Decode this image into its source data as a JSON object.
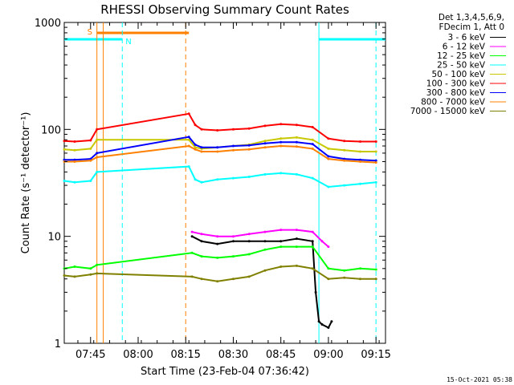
{
  "chart_data": {
    "type": "line",
    "title": "RHESSI Observing Summary Count Rates",
    "xlabel": "Start Time (23-Feb-04 07:36:42)",
    "ylabel": "Count Rate (s⁻¹ detector⁻¹)",
    "yscale": "log",
    "ylim": [
      1,
      1000
    ],
    "y_ticks": [
      "1",
      "10",
      "100",
      "1000"
    ],
    "x_ticks": [
      "07:45",
      "08:00",
      "08:15",
      "08:30",
      "08:45",
      "09:00",
      "09:15"
    ],
    "xlim": [
      "07:36:42",
      "09:18:00"
    ],
    "legend_header": [
      "Det 1,3,4,5,6,9,",
      "FDecim 1, Att 0"
    ],
    "legend_position": "right",
    "footer_date": "15-Oct-2021 05:38",
    "flags": [
      {
        "label": "S",
        "color": "#ff8000",
        "start": "07:47",
        "end": "08:16"
      },
      {
        "label": "N",
        "color": "#00ffff",
        "start": "07:36:42",
        "end": "07:55"
      },
      {
        "label": "",
        "color": "#00ffff",
        "start": "08:57",
        "end": "09:18:00"
      }
    ],
    "time_markers": [
      {
        "time": "07:47",
        "color": "#ff8000",
        "style": "solid"
      },
      {
        "time": "07:49",
        "color": "#ff8000",
        "style": "solid"
      },
      {
        "time": "07:55",
        "color": "#00ffff",
        "style": "dashed"
      },
      {
        "time": "08:15",
        "color": "#ff8000",
        "style": "dashed"
      },
      {
        "time": "08:57",
        "color": "#00ffff",
        "style": "solid"
      },
      {
        "time": "09:15",
        "color": "#00ffff",
        "style": "dashed"
      }
    ],
    "series": [
      {
        "name": "3 - 6 keV",
        "color": "#000000",
        "points": [
          [
            "08:17",
            10
          ],
          [
            "08:20",
            9
          ],
          [
            "08:25",
            8.5
          ],
          [
            "08:30",
            9
          ],
          [
            "08:35",
            9
          ],
          [
            "08:40",
            9
          ],
          [
            "08:45",
            9
          ],
          [
            "08:50",
            9.5
          ],
          [
            "08:55",
            9
          ],
          [
            "08:56",
            3
          ],
          [
            "08:57",
            1.6
          ],
          [
            "08:58",
            1.5
          ],
          [
            "09:00",
            1.4
          ],
          [
            "09:01",
            1.6
          ]
        ]
      },
      {
        "name": "6 - 12 keV",
        "color": "#ff00ff",
        "points": [
          [
            "08:17",
            11
          ],
          [
            "08:20",
            10.5
          ],
          [
            "08:25",
            10
          ],
          [
            "08:30",
            10
          ],
          [
            "08:35",
            10.5
          ],
          [
            "08:40",
            11
          ],
          [
            "08:45",
            11.5
          ],
          [
            "08:50",
            11.5
          ],
          [
            "08:55",
            11
          ],
          [
            "08:58",
            9
          ],
          [
            "09:00",
            8
          ]
        ]
      },
      {
        "name": "12 - 25 keV",
        "color": "#00ff00",
        "points": [
          [
            "07:36:42",
            5
          ],
          [
            "07:40",
            5.2
          ],
          [
            "07:45",
            5
          ],
          [
            "07:47",
            5.4
          ],
          [
            "08:17",
            7
          ],
          [
            "08:20",
            6.5
          ],
          [
            "08:25",
            6.3
          ],
          [
            "08:30",
            6.5
          ],
          [
            "08:35",
            6.8
          ],
          [
            "08:40",
            7.5
          ],
          [
            "08:45",
            8
          ],
          [
            "08:50",
            8
          ],
          [
            "08:55",
            8
          ],
          [
            "09:00",
            5
          ],
          [
            "09:05",
            4.8
          ],
          [
            "09:10",
            5
          ],
          [
            "09:15",
            4.9
          ]
        ]
      },
      {
        "name": "25 - 50 keV",
        "color": "#00ffff",
        "points": [
          [
            "07:36:42",
            33
          ],
          [
            "07:40",
            32
          ],
          [
            "07:45",
            33
          ],
          [
            "07:47",
            40
          ],
          [
            "08:16",
            45
          ],
          [
            "08:18",
            34
          ],
          [
            "08:20",
            32
          ],
          [
            "08:25",
            34
          ],
          [
            "08:30",
            35
          ],
          [
            "08:35",
            36
          ],
          [
            "08:40",
            38
          ],
          [
            "08:45",
            39
          ],
          [
            "08:50",
            38
          ],
          [
            "08:55",
            35
          ],
          [
            "09:00",
            29
          ],
          [
            "09:05",
            30
          ],
          [
            "09:10",
            31
          ],
          [
            "09:15",
            32
          ]
        ]
      },
      {
        "name": "50 - 100 keV",
        "color": "#c8c800",
        "points": [
          [
            "07:36:42",
            65
          ],
          [
            "07:40",
            64
          ],
          [
            "07:45",
            66
          ],
          [
            "07:47",
            80
          ],
          [
            "08:16",
            80
          ],
          [
            "08:18",
            68
          ],
          [
            "08:20",
            66
          ],
          [
            "08:25",
            68
          ],
          [
            "08:30",
            70
          ],
          [
            "08:35",
            72
          ],
          [
            "08:40",
            78
          ],
          [
            "08:45",
            82
          ],
          [
            "08:50",
            84
          ],
          [
            "08:55",
            80
          ],
          [
            "09:00",
            66
          ],
          [
            "09:05",
            64
          ],
          [
            "09:10",
            62
          ],
          [
            "09:15",
            62
          ]
        ]
      },
      {
        "name": "100 - 300 keV",
        "color": "#ff0000",
        "points": [
          [
            "07:36:42",
            78
          ],
          [
            "07:40",
            77
          ],
          [
            "07:45",
            79
          ],
          [
            "07:47",
            100
          ],
          [
            "08:16",
            140
          ],
          [
            "08:18",
            110
          ],
          [
            "08:20",
            100
          ],
          [
            "08:25",
            98
          ],
          [
            "08:30",
            100
          ],
          [
            "08:35",
            102
          ],
          [
            "08:40",
            108
          ],
          [
            "08:45",
            112
          ],
          [
            "08:50",
            110
          ],
          [
            "08:55",
            105
          ],
          [
            "09:00",
            82
          ],
          [
            "09:05",
            78
          ],
          [
            "09:10",
            77
          ],
          [
            "09:15",
            77
          ]
        ]
      },
      {
        "name": "300 - 800 keV",
        "color": "#0000ff",
        "points": [
          [
            "07:36:42",
            52
          ],
          [
            "07:40",
            52
          ],
          [
            "07:45",
            53
          ],
          [
            "07:47",
            60
          ],
          [
            "08:16",
            85
          ],
          [
            "08:18",
            72
          ],
          [
            "08:20",
            68
          ],
          [
            "08:25",
            68
          ],
          [
            "08:30",
            70
          ],
          [
            "08:35",
            71
          ],
          [
            "08:40",
            74
          ],
          [
            "08:45",
            76
          ],
          [
            "08:50",
            76
          ],
          [
            "08:55",
            73
          ],
          [
            "09:00",
            56
          ],
          [
            "09:05",
            53
          ],
          [
            "09:10",
            52
          ],
          [
            "09:15",
            51
          ]
        ]
      },
      {
        "name": "800 - 7000 keV",
        "color": "#ff8000",
        "points": [
          [
            "07:36:42",
            50
          ],
          [
            "07:40",
            50
          ],
          [
            "07:45",
            51
          ],
          [
            "07:47",
            55
          ],
          [
            "08:16",
            70
          ],
          [
            "08:18",
            65
          ],
          [
            "08:20",
            62
          ],
          [
            "08:25",
            62
          ],
          [
            "08:30",
            64
          ],
          [
            "08:35",
            65
          ],
          [
            "08:40",
            68
          ],
          [
            "08:45",
            70
          ],
          [
            "08:50",
            69
          ],
          [
            "08:55",
            66
          ],
          [
            "09:00",
            53
          ],
          [
            "09:05",
            51
          ],
          [
            "09:10",
            50
          ],
          [
            "09:15",
            49
          ]
        ]
      },
      {
        "name": "7000 - 15000 keV",
        "color": "#808000",
        "points": [
          [
            "07:36:42",
            4.3
          ],
          [
            "07:40",
            4.2
          ],
          [
            "07:45",
            4.4
          ],
          [
            "07:47",
            4.5
          ],
          [
            "08:17",
            4.2
          ],
          [
            "08:20",
            4.0
          ],
          [
            "08:25",
            3.8
          ],
          [
            "08:30",
            4.0
          ],
          [
            "08:35",
            4.2
          ],
          [
            "08:40",
            4.8
          ],
          [
            "08:45",
            5.2
          ],
          [
            "08:50",
            5.3
          ],
          [
            "08:55",
            5.0
          ],
          [
            "09:00",
            4.0
          ],
          [
            "09:05",
            4.1
          ],
          [
            "09:10",
            4.0
          ],
          [
            "09:15",
            4.0
          ]
        ]
      }
    ]
  }
}
